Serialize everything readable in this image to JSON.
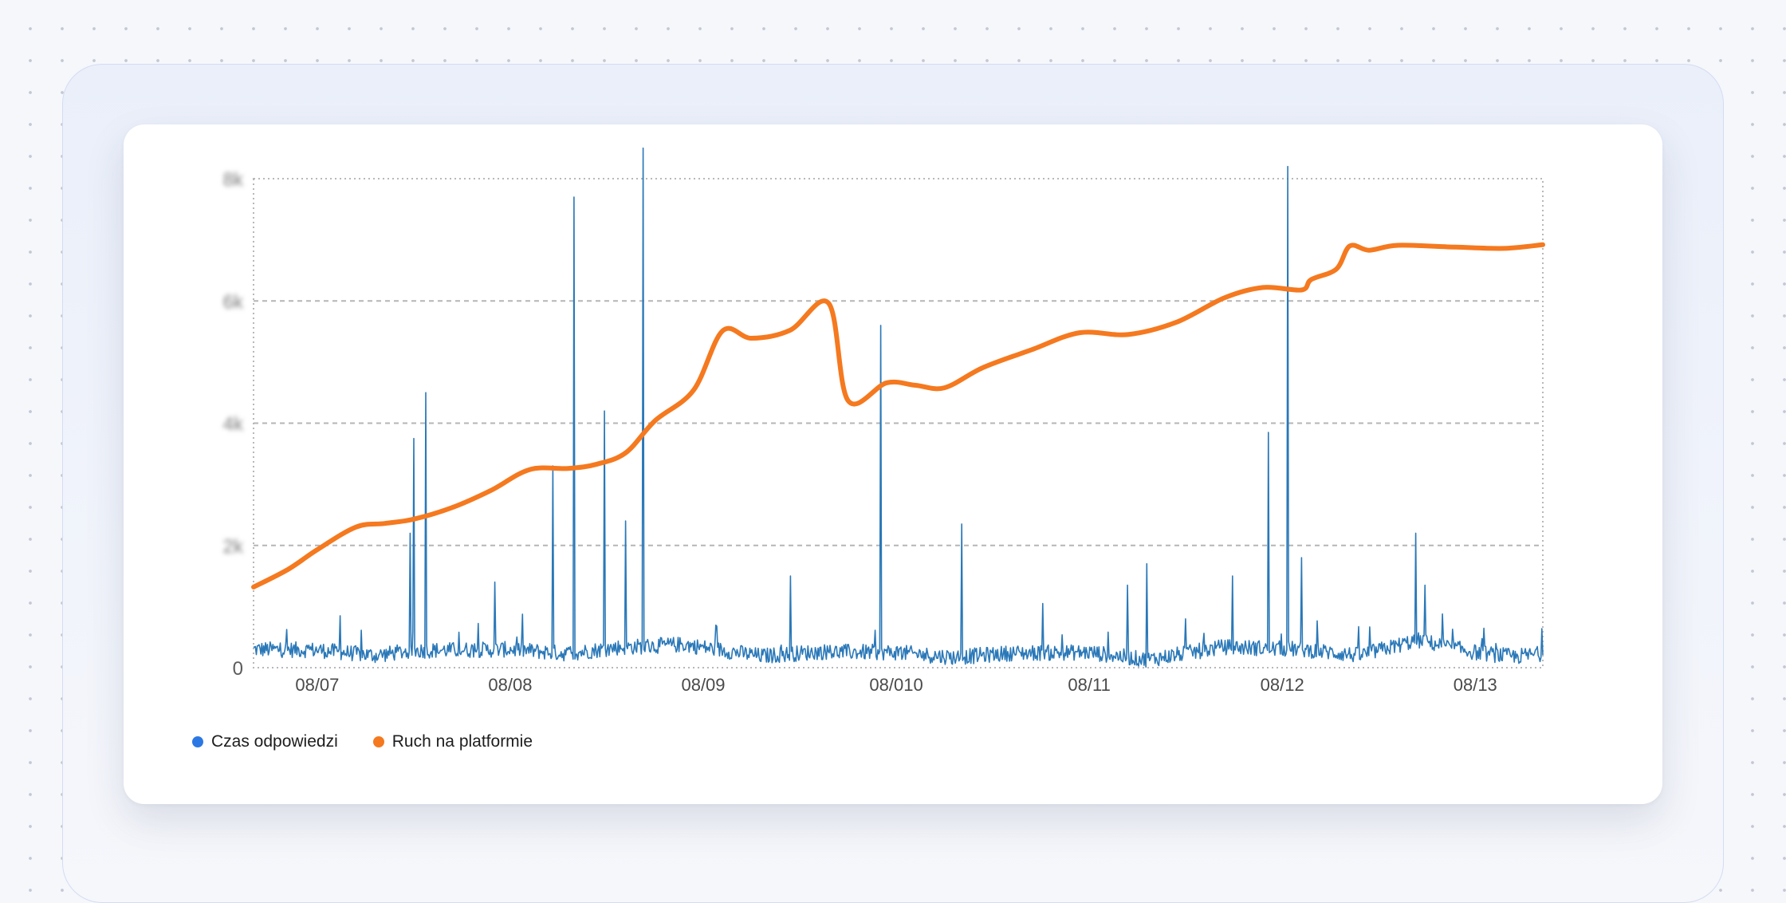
{
  "chart_data": {
    "type": "line",
    "x_tick_labels": [
      "08/07",
      "08/08",
      "08/09",
      "08/010",
      "08/11",
      "08/12",
      "08/13"
    ],
    "x_tick_positions": [
      0.5,
      1.5,
      2.5,
      3.5,
      4.5,
      5.5,
      6.5
    ],
    "xlim": [
      0.17,
      6.85
    ],
    "y_tick_labels": [
      "0",
      "2k",
      "4k",
      "6k",
      "8k"
    ],
    "ylim": [
      0,
      8000
    ],
    "ylabels_blurred": true,
    "grid": {
      "horizontal": "dashed",
      "plot_border": "dotted"
    },
    "legend_position": "bottom-left",
    "series": [
      {
        "name": "Czas odpowiedzi",
        "color": "#2a78b8",
        "style": "line-thin-noisy",
        "baseline": [
          [
            0.17,
            300
          ],
          [
            0.5,
            290
          ],
          [
            0.8,
            200
          ],
          [
            1.0,
            280
          ],
          [
            1.5,
            300
          ],
          [
            1.8,
            230
          ],
          [
            2.05,
            330
          ],
          [
            2.4,
            380
          ],
          [
            2.8,
            190
          ],
          [
            3.1,
            260
          ],
          [
            3.5,
            250
          ],
          [
            3.8,
            170
          ],
          [
            4.1,
            240
          ],
          [
            4.5,
            250
          ],
          [
            4.8,
            130
          ],
          [
            5.2,
            340
          ],
          [
            5.6,
            300
          ],
          [
            5.9,
            200
          ],
          [
            6.2,
            450
          ],
          [
            6.5,
            250
          ],
          [
            6.7,
            180
          ],
          [
            6.85,
            230
          ]
        ],
        "spikes": [
          [
            0.62,
            850
          ],
          [
            0.98,
            2200
          ],
          [
            1.0,
            3750
          ],
          [
            1.06,
            4500
          ],
          [
            1.42,
            1400
          ],
          [
            1.72,
            3300
          ],
          [
            1.83,
            7700
          ],
          [
            1.99,
            4200
          ],
          [
            2.1,
            2400
          ],
          [
            2.19,
            8500
          ],
          [
            2.95,
            1500
          ],
          [
            3.42,
            5600
          ],
          [
            3.84,
            2350
          ],
          [
            4.26,
            1050
          ],
          [
            4.7,
            1350
          ],
          [
            4.8,
            1700
          ],
          [
            5.24,
            1500
          ],
          [
            5.43,
            3850
          ],
          [
            5.53,
            8200
          ],
          [
            5.6,
            1800
          ],
          [
            6.19,
            2200
          ],
          [
            6.24,
            1350
          ]
        ]
      },
      {
        "name": "Ruch na platformie",
        "color": "#f5791f",
        "style": "line-thick-smooth",
        "points": [
          [
            0.17,
            1320
          ],
          [
            0.35,
            1610
          ],
          [
            0.5,
            1930
          ],
          [
            0.7,
            2300
          ],
          [
            0.85,
            2360
          ],
          [
            1.0,
            2430
          ],
          [
            1.2,
            2620
          ],
          [
            1.4,
            2900
          ],
          [
            1.6,
            3240
          ],
          [
            1.8,
            3260
          ],
          [
            1.95,
            3330
          ],
          [
            2.1,
            3520
          ],
          [
            2.25,
            4040
          ],
          [
            2.45,
            4540
          ],
          [
            2.6,
            5510
          ],
          [
            2.75,
            5390
          ],
          [
            2.95,
            5520
          ],
          [
            3.15,
            5960
          ],
          [
            3.25,
            4370
          ],
          [
            3.45,
            4660
          ],
          [
            3.6,
            4620
          ],
          [
            3.75,
            4580
          ],
          [
            3.95,
            4910
          ],
          [
            4.2,
            5200
          ],
          [
            4.45,
            5480
          ],
          [
            4.7,
            5450
          ],
          [
            4.95,
            5650
          ],
          [
            5.2,
            6050
          ],
          [
            5.4,
            6220
          ],
          [
            5.6,
            6180
          ],
          [
            5.65,
            6350
          ],
          [
            5.78,
            6520
          ],
          [
            5.85,
            6900
          ],
          [
            5.95,
            6830
          ],
          [
            6.1,
            6910
          ],
          [
            6.4,
            6880
          ],
          [
            6.65,
            6860
          ],
          [
            6.85,
            6920
          ]
        ]
      }
    ]
  },
  "legend": {
    "items": [
      {
        "label": "Czas odpowiedzi",
        "color": "#2b78e4"
      },
      {
        "label": "Ruch na platformie",
        "color": "#f5791f"
      }
    ]
  }
}
